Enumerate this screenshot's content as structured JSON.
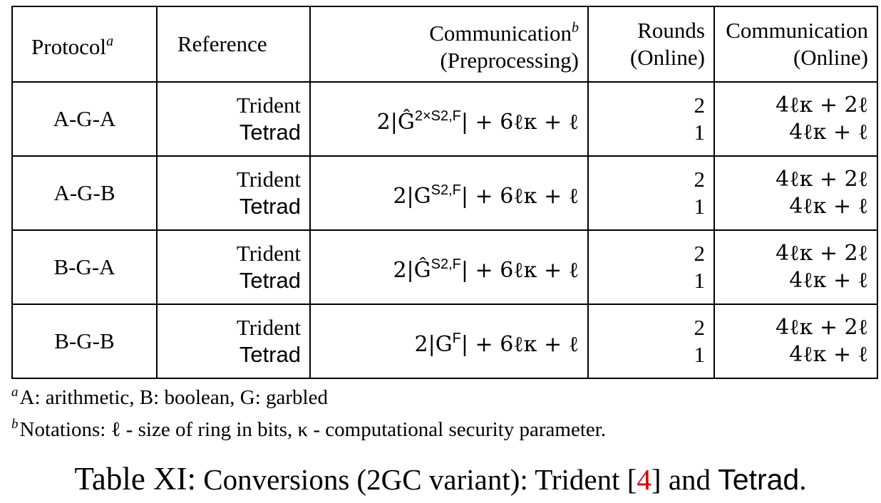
{
  "table": {
    "headers": {
      "protocol": "Protocol",
      "protocol_mark": "a",
      "reference": "Reference",
      "comm_pre_line1": "Communication",
      "comm_pre_mark": "b",
      "comm_pre_line2": "(Preprocessing)",
      "rounds_line1": "Rounds",
      "rounds_line2": "(Online)",
      "comm_on_line1": "Communication",
      "comm_on_line2": "(Online)"
    },
    "rows": [
      {
        "protocol": "A-G-A",
        "ref1": "Trident",
        "ref2": "Tetrad",
        "pre_prefix": "2|Ĝ",
        "pre_sup": "2×S2,F",
        "pre_suffix": "| + 6ℓκ + ℓ",
        "round1": "2",
        "round2": "1",
        "on1": "4ℓκ + 2ℓ",
        "on2": "4ℓκ + ℓ"
      },
      {
        "protocol": "A-G-B",
        "ref1": "Trident",
        "ref2": "Tetrad",
        "pre_prefix": "2|G",
        "pre_sup": "S2,F",
        "pre_suffix": "| + 6ℓκ + ℓ",
        "round1": "2",
        "round2": "1",
        "on1": "4ℓκ + 2ℓ",
        "on2": "4ℓκ + ℓ"
      },
      {
        "protocol": "B-G-A",
        "ref1": "Trident",
        "ref2": "Tetrad",
        "pre_prefix": "2|Ĝ",
        "pre_sup": "S2,F",
        "pre_suffix": "| + 6ℓκ + ℓ",
        "round1": "2",
        "round2": "1",
        "on1": "4ℓκ + 2ℓ",
        "on2": "4ℓκ + ℓ"
      },
      {
        "protocol": "B-G-B",
        "ref1": "Trident",
        "ref2": "Tetrad",
        "pre_prefix": "2|G",
        "pre_sup": "F",
        "pre_suffix": "| + 6ℓκ + ℓ",
        "round1": "2",
        "round2": "1",
        "on1": "4ℓκ + 2ℓ",
        "on2": "4ℓκ + ℓ"
      }
    ]
  },
  "footnotes": [
    {
      "mark": "a",
      "text": "A: arithmetic, B: boolean, G: garbled"
    },
    {
      "mark": "b",
      "text": "Notations: ℓ - size of ring in bits, κ - computational security parameter."
    }
  ],
  "caption": {
    "label": "Table XI:",
    "text_before": "Conversions (2GC variant): Trident [",
    "ref_number": "4",
    "text_middle": "] and ",
    "tetrad": "Tetrad",
    "period": "."
  },
  "colors": {
    "reference_link": "#e00000",
    "text": "#000000"
  }
}
